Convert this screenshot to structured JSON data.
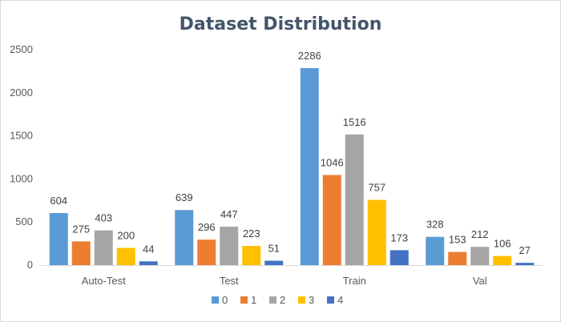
{
  "chart_data": {
    "type": "bar",
    "title": "Dataset Distribution",
    "categories": [
      "Auto-Test",
      "Test",
      "Train",
      "Val"
    ],
    "series": [
      {
        "name": "0",
        "values": [
          604,
          639,
          2286,
          328
        ],
        "color": "#5b9bd5"
      },
      {
        "name": "1",
        "values": [
          275,
          296,
          1046,
          153
        ],
        "color": "#ed7d31"
      },
      {
        "name": "2",
        "values": [
          403,
          447,
          1516,
          212
        ],
        "color": "#a5a5a5"
      },
      {
        "name": "3",
        "values": [
          200,
          223,
          757,
          106
        ],
        "color": "#ffc000"
      },
      {
        "name": "4",
        "values": [
          44,
          51,
          173,
          27
        ],
        "color": "#4472c4"
      }
    ],
    "yticks": [
      "0",
      "500",
      "1000",
      "1500",
      "2000",
      "2500"
    ],
    "ylim": [
      0,
      2500
    ],
    "grid": false,
    "legend_position": "bottom"
  }
}
